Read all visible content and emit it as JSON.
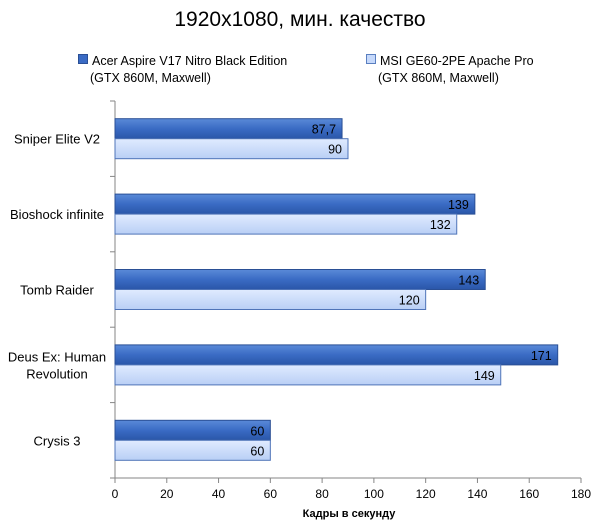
{
  "chart_data": {
    "type": "bar",
    "orientation": "horizontal",
    "title": "1920x1080, мин. качество",
    "xlabel": "Кадры  в секунду",
    "ylabel": "",
    "xlim": [
      0,
      180
    ],
    "xticks": [
      "0",
      "20",
      "40",
      "60",
      "80",
      "100",
      "120",
      "140",
      "160",
      "180"
    ],
    "grid": false,
    "legend_position": "top",
    "categories": [
      "Sniper Elite V2",
      "Bioshock infinite",
      "Tomb Raider",
      "Deus Ex: Human Revolution",
      "Crysis 3"
    ],
    "category_lines": [
      [
        "Sniper Elite V2"
      ],
      [
        "Bioshock infinite"
      ],
      [
        "Tomb Raider"
      ],
      [
        "Deus Ex: Human",
        "Revolution"
      ],
      [
        "Crysis 3"
      ]
    ],
    "series": [
      {
        "name": "Acer Aspire V17 Nitro Black Edition",
        "name_line2": "(GTX 860M, Maxwell)",
        "values": [
          87.7,
          139,
          143,
          171,
          60
        ],
        "labels": [
          "87,7",
          "139",
          "143",
          "171",
          "60"
        ],
        "color": "#3a6bc4"
      },
      {
        "name": "MSI GE60-2PE  Apache Pro",
        "name_line2": "(GTX 860M, Maxwell)",
        "values": [
          90,
          132,
          120,
          149,
          60
        ],
        "labels": [
          "90",
          "132",
          "120",
          "149",
          "60"
        ],
        "color": "#c6d9fb"
      }
    ]
  }
}
